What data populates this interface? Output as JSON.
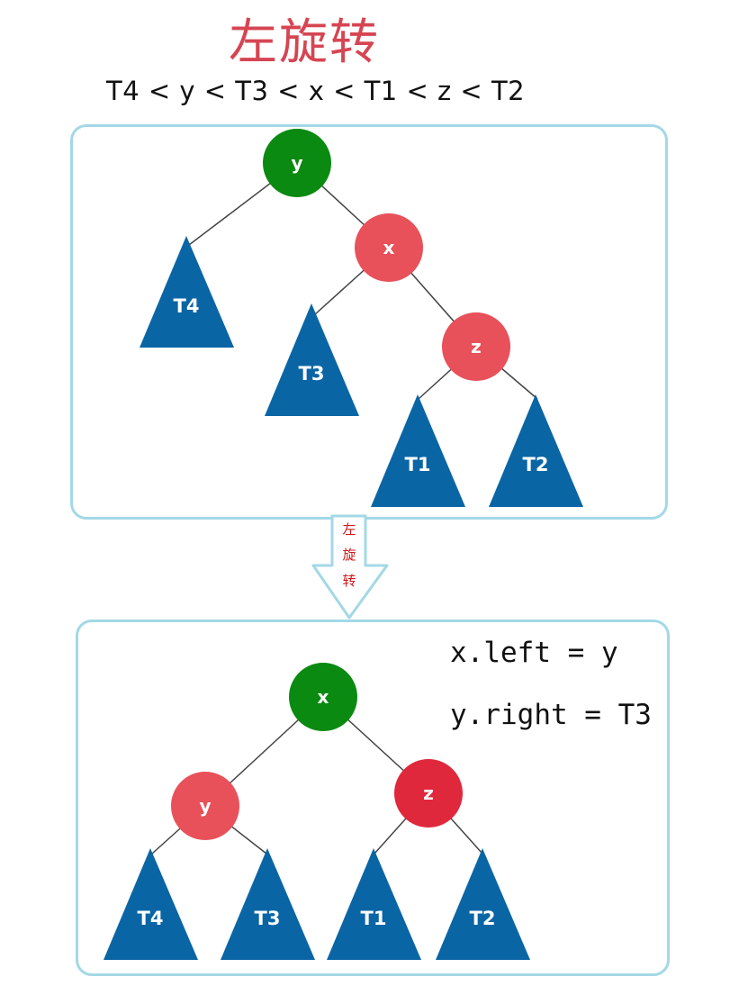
{
  "title": "左旋转",
  "ordering": "T4 < y < T3 < x < T1 < z < T2",
  "arrow": {
    "chars": [
      "左",
      "旋",
      "转"
    ]
  },
  "colors": {
    "green": "#0a8a10",
    "red": "#e8505a",
    "red_dark": "#e0283c",
    "blue": "#0a65a5",
    "panel_border": "#a3d8e6"
  },
  "before": {
    "nodes": {
      "y": "y",
      "x": "x",
      "z": "z"
    },
    "subtrees": {
      "T4": "T4",
      "T3": "T3",
      "T1": "T1",
      "T2": "T2"
    }
  },
  "after": {
    "nodes": {
      "x": "x",
      "y": "y",
      "z": "z"
    },
    "subtrees": {
      "T4": "T4",
      "T3": "T3",
      "T1": "T1",
      "T2": "T2"
    },
    "code": [
      "x.left = y",
      "y.right = T3"
    ]
  }
}
